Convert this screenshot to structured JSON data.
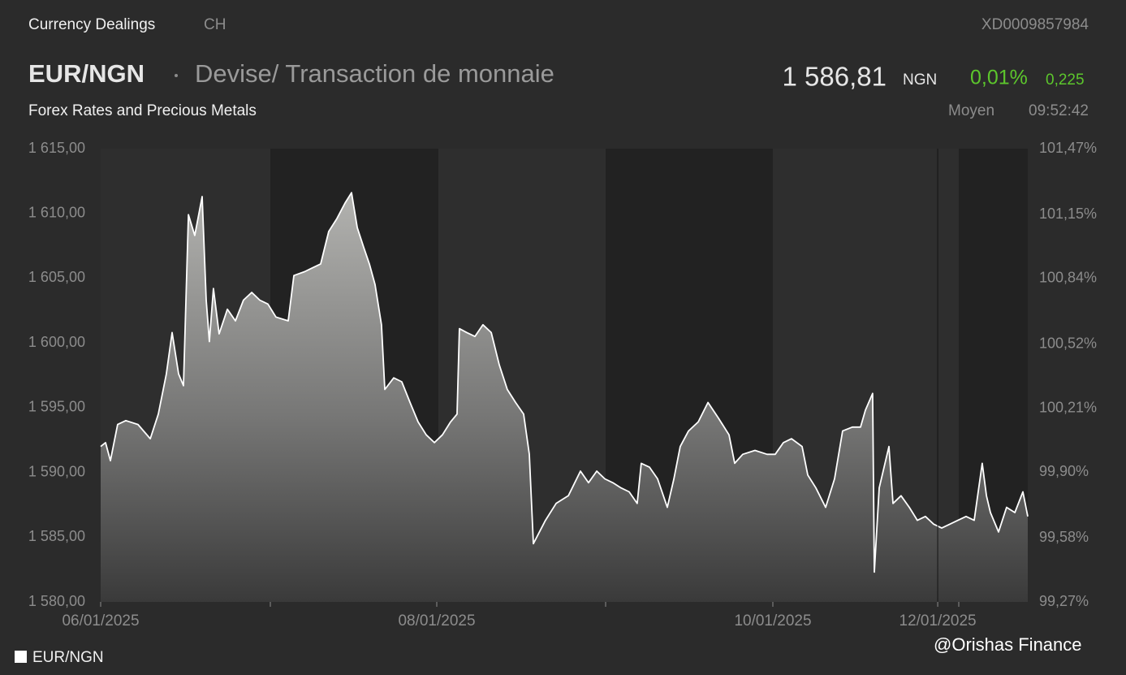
{
  "header": {
    "section": "Currency Dealings",
    "country": "CH",
    "isin": "XD0009857984",
    "symbol": "EUR/NGN",
    "description": "Devise/ Transaction de monnaie",
    "price": "1 586,81",
    "currency": "NGN",
    "change_pct": "0,01%",
    "change_abs": "0,225",
    "category": "Forex Rates and Precious Metals",
    "price_type": "Moyen",
    "time": "09:52:42"
  },
  "watermark": "@Orishas Finance",
  "chart_data": {
    "type": "area",
    "x": [
      0,
      0.029,
      0.058,
      0.101,
      0.15,
      0.222,
      0.295,
      0.343,
      0.391,
      0.425,
      0.464,
      0.493,
      0.522,
      0.56,
      0.604,
      0.628,
      0.647,
      0.671,
      0.705,
      0.754,
      0.802,
      0.85,
      0.899,
      0.947,
      0.995,
      1.043,
      1.116,
      1.15,
      1.213,
      1.261,
      1.309,
      1.357,
      1.406,
      1.454,
      1.493,
      1.527,
      1.565,
      1.599,
      1.633,
      1.671,
      1.691,
      1.744,
      1.792,
      1.841,
      1.889,
      1.937,
      1.986,
      2.034,
      2.082,
      2.121,
      2.135,
      2.179,
      2.227,
      2.275,
      2.324,
      2.372,
      2.42,
      2.469,
      2.517,
      2.551,
      2.575,
      2.599,
      2.647,
      2.71,
      2.783,
      2.855,
      2.903,
      2.952,
      3,
      3.048,
      3.097,
      3.145,
      3.193,
      3.217,
      3.266,
      3.314,
      3.372,
      3.411,
      3.449,
      3.498,
      3.556,
      3.614,
      3.676,
      3.739,
      3.773,
      3.821,
      3.894,
      3.966,
      4.014,
      4.063,
      4.111,
      4.174,
      4.208,
      4.256,
      4.314,
      4.367,
      4.415,
      4.473,
      4.522,
      4.551,
      4.594,
      4.604,
      4.633,
      4.691,
      4.715,
      4.763,
      4.812,
      4.86,
      4.908,
      4.957,
      5.005,
      5.053,
      5.101,
      5.15,
      5.198,
      5.246,
      5.271,
      5.295,
      5.343,
      5.391,
      5.44,
      5.488,
      5.517
    ],
    "series": [
      {
        "name": "EUR/NGN",
        "color": "#ffffff",
        "values": [
          1592.0,
          1592.3,
          1590.9,
          1593.7,
          1594.0,
          1593.7,
          1592.6,
          1594.5,
          1597.6,
          1600.8,
          1597.6,
          1596.7,
          1609.9,
          1608.3,
          1611.3,
          1603.3,
          1600.1,
          1604.2,
          1600.7,
          1602.6,
          1601.7,
          1603.3,
          1603.9,
          1603.3,
          1603.0,
          1602.0,
          1601.7,
          1605.2,
          1605.5,
          1605.8,
          1606.1,
          1608.6,
          1609.6,
          1610.8,
          1611.6,
          1608.9,
          1607.4,
          1606.1,
          1604.5,
          1601.4,
          1596.4,
          1597.3,
          1597.0,
          1595.4,
          1593.9,
          1592.9,
          1592.3,
          1592.9,
          1593.9,
          1594.5,
          1601.1,
          1600.8,
          1600.5,
          1601.4,
          1600.8,
          1598.3,
          1596.4,
          1595.4,
          1594.5,
          1591.4,
          1584.5,
          1585.1,
          1586.3,
          1587.6,
          1588.2,
          1590.1,
          1589.2,
          1590.1,
          1589.5,
          1589.2,
          1588.8,
          1588.5,
          1587.6,
          1590.7,
          1590.4,
          1589.5,
          1587.3,
          1589.5,
          1592.0,
          1593.2,
          1593.9,
          1595.4,
          1594.2,
          1592.9,
          1590.7,
          1591.4,
          1591.7,
          1591.4,
          1591.4,
          1592.3,
          1592.6,
          1592.0,
          1589.8,
          1588.8,
          1587.3,
          1589.5,
          1593.2,
          1593.5,
          1593.5,
          1594.8,
          1596.1,
          1582.3,
          1588.8,
          1592.0,
          1587.6,
          1588.2,
          1587.3,
          1586.3,
          1586.6,
          1586.0,
          1585.7,
          1586.0,
          1586.3,
          1586.6,
          1586.3,
          1590.7,
          1588.2,
          1586.9,
          1585.4,
          1587.3,
          1586.9,
          1588.5,
          1586.6
        ]
      }
    ],
    "xlim": [
      0,
      5.517
    ],
    "xticks": [
      {
        "value": 0,
        "label": "06/01/2025"
      },
      {
        "value": 2,
        "label": "08/01/2025"
      },
      {
        "value": 4,
        "label": "10/01/2025"
      },
      {
        "value": 4.981,
        "label": "12/01/2025"
      }
    ],
    "ylim": [
      1580,
      1615
    ],
    "yticks": [
      {
        "value": 1580,
        "label": "1 580,00"
      },
      {
        "value": 1585,
        "label": "1 585,00"
      },
      {
        "value": 1590,
        "label": "1 590,00"
      },
      {
        "value": 1595,
        "label": "1 595,00"
      },
      {
        "value": 1600,
        "label": "1 600,00"
      },
      {
        "value": 1605,
        "label": "1 605,00"
      },
      {
        "value": 1610,
        "label": "1 610,00"
      },
      {
        "value": 1615,
        "label": "1 615,00"
      }
    ],
    "y2lim": [
      99.27,
      101.47
    ],
    "y2ticks": [
      {
        "value": 99.27,
        "label": "99,27%"
      },
      {
        "value": 99.58,
        "label": "99,58%"
      },
      {
        "value": 99.9,
        "label": "99,90%"
      },
      {
        "value": 100.21,
        "label": "100,21%"
      },
      {
        "value": 100.52,
        "label": "100,52%"
      },
      {
        "value": 100.84,
        "label": "100,84%"
      },
      {
        "value": 101.15,
        "label": "101,15%"
      },
      {
        "value": 101.47,
        "label": "101,47%"
      }
    ],
    "legend": "bottom-left"
  }
}
